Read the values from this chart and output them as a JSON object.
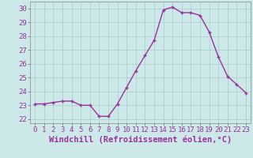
{
  "hours": [
    0,
    1,
    2,
    3,
    4,
    5,
    6,
    7,
    8,
    9,
    10,
    11,
    12,
    13,
    14,
    15,
    16,
    17,
    18,
    19,
    20,
    21,
    22,
    23
  ],
  "values": [
    23.1,
    23.1,
    23.2,
    23.3,
    23.3,
    23.0,
    23.0,
    22.2,
    22.2,
    23.1,
    24.3,
    25.5,
    26.6,
    27.7,
    29.9,
    30.1,
    29.7,
    29.7,
    29.5,
    28.3,
    26.5,
    25.1,
    24.5,
    23.9
  ],
  "line_color": "#993399",
  "marker": "+",
  "bg_color": "#cce8e8",
  "grid_color": "#aacccc",
  "xlabel": "Windchill (Refroidissement éolien,°C)",
  "ylim": [
    21.7,
    30.5
  ],
  "xlim": [
    -0.5,
    23.5
  ],
  "yticks": [
    22,
    23,
    24,
    25,
    26,
    27,
    28,
    29,
    30
  ],
  "xticks": [
    0,
    1,
    2,
    3,
    4,
    5,
    6,
    7,
    8,
    9,
    10,
    11,
    12,
    13,
    14,
    15,
    16,
    17,
    18,
    19,
    20,
    21,
    22,
    23
  ],
  "tick_fontsize": 6.5,
  "xlabel_fontsize": 7.5,
  "marker_size": 3.5,
  "line_width": 1.0
}
